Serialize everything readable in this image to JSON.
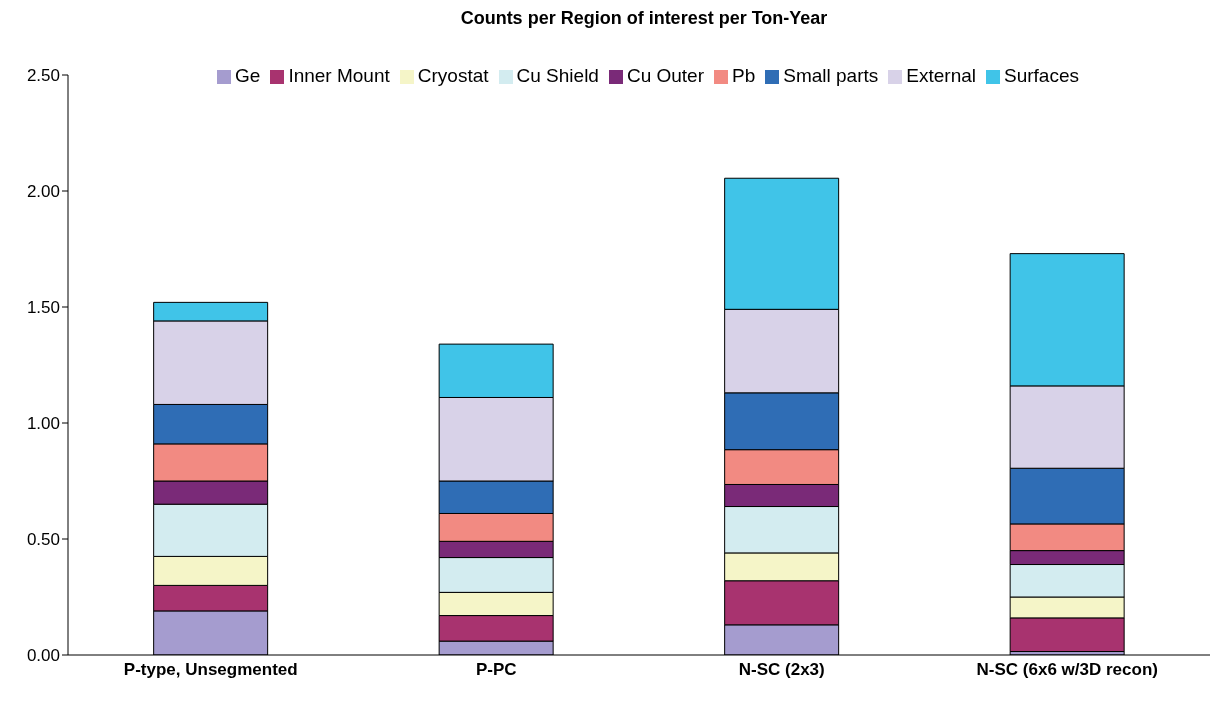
{
  "chart_data": {
    "type": "bar",
    "title": "Counts per Region of interest per Ton-Year",
    "stacked": true,
    "legend": "top",
    "grid": false,
    "categories": [
      "P-type, Unsegmented",
      "P-PC",
      "N-SC (2x3)",
      "N-SC (6x6 w/3D recon)"
    ],
    "ylim": [
      0,
      2.5
    ],
    "yticks": [
      {
        "value": 0,
        "label": "0.00"
      },
      {
        "value": 0.5,
        "label": "0.50"
      },
      {
        "value": 1,
        "label": "1.00"
      },
      {
        "value": 1.5,
        "label": "1.50"
      },
      {
        "value": 2,
        "label": "2.00"
      },
      {
        "value": 2.5,
        "label": "2.50"
      }
    ],
    "series": [
      {
        "name": "Ge",
        "color": "#a59ccf",
        "values": [
          0.19,
          0.06,
          0.13,
          0.015
        ]
      },
      {
        "name": "Inner Mount",
        "color": "#a8336f",
        "values": [
          0.11,
          0.11,
          0.19,
          0.145
        ]
      },
      {
        "name": "Cryostat",
        "color": "#f5f5c8",
        "values": [
          0.125,
          0.1,
          0.12,
          0.09
        ]
      },
      {
        "name": "Cu Shield",
        "color": "#d3ecf0",
        "values": [
          0.225,
          0.15,
          0.2,
          0.14
        ]
      },
      {
        "name": "Cu Outer",
        "color": "#7a2a78",
        "values": [
          0.1,
          0.07,
          0.095,
          0.06
        ]
      },
      {
        "name": "Pb",
        "color": "#f28a82",
        "values": [
          0.16,
          0.12,
          0.15,
          0.115
        ]
      },
      {
        "name": "Small parts",
        "color": "#2f6db5",
        "values": [
          0.17,
          0.14,
          0.245,
          0.24
        ]
      },
      {
        "name": "External",
        "color": "#d8d2e8",
        "values": [
          0.36,
          0.36,
          0.36,
          0.355
        ]
      },
      {
        "name": "Surfaces",
        "color": "#40c4e8",
        "values": [
          0.08,
          0.23,
          0.565,
          0.57
        ]
      }
    ]
  }
}
